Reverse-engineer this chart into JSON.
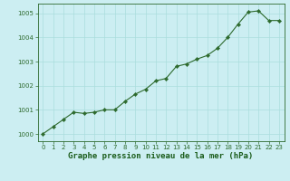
{
  "x": [
    0,
    1,
    2,
    3,
    4,
    5,
    6,
    7,
    8,
    9,
    10,
    11,
    12,
    13,
    14,
    15,
    16,
    17,
    18,
    19,
    20,
    21,
    22,
    23
  ],
  "y": [
    1000.0,
    1000.3,
    1000.6,
    1000.9,
    1000.85,
    1000.9,
    1001.0,
    1001.0,
    1001.35,
    1001.65,
    1001.85,
    1002.2,
    1002.3,
    1002.8,
    1002.9,
    1003.1,
    1003.25,
    1003.55,
    1004.0,
    1004.55,
    1005.05,
    1005.1,
    1004.7,
    1004.7
  ],
  "line_color": "#2d6a2d",
  "marker": "D",
  "marker_size": 2.2,
  "line_width": 0.8,
  "bg_color": "#cceef2",
  "grid_color": "#aadddd",
  "axis_color": "#2d6a2d",
  "xlabel": "Graphe pression niveau de la mer (hPa)",
  "xlabel_fontsize": 6.5,
  "xlabel_color": "#1a5c1a",
  "tick_label_color": "#2d6a2d",
  "tick_fontsize": 5.0,
  "ylim": [
    999.7,
    1005.4
  ],
  "yticks": [
    1000,
    1001,
    1002,
    1003,
    1004,
    1005
  ],
  "xlim": [
    -0.5,
    23.5
  ],
  "xticks": [
    0,
    1,
    2,
    3,
    4,
    5,
    6,
    7,
    8,
    9,
    10,
    11,
    12,
    13,
    14,
    15,
    16,
    17,
    18,
    19,
    20,
    21,
    22,
    23
  ]
}
